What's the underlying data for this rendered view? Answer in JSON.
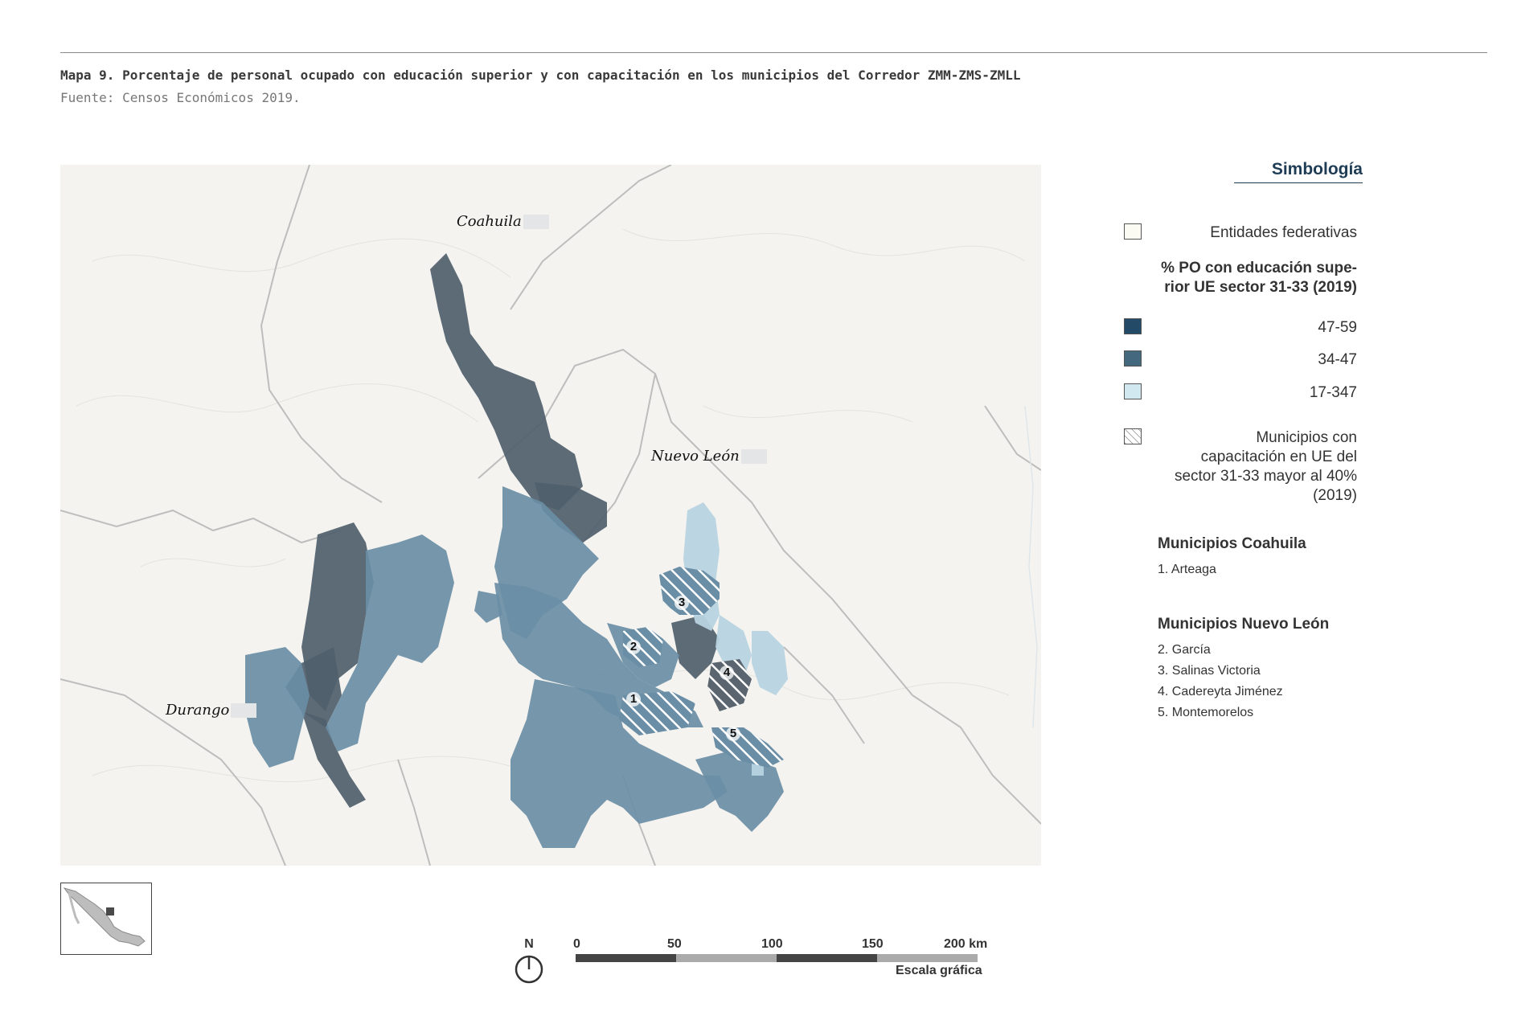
{
  "caption": {
    "title": "Mapa 9. Porcentaje de personal ocupado con educación superior y con capacitación en los municipios del Corredor ZMM-ZMS-ZMLL",
    "source": "Fuente: Censos Económicos 2019."
  },
  "map": {
    "state_labels": {
      "coahuila": "Coahuila",
      "nuevo_leon": "Nuevo León",
      "durango": "Durango"
    },
    "municipality_markers": [
      "1",
      "2",
      "3",
      "4",
      "5"
    ],
    "colors": {
      "background": "#f4f3ef",
      "class_47_59": "#4f5f6d",
      "class_34_47": "#6a8ea5",
      "class_17_347": "#b7d3e0",
      "hatch": "#ffffff",
      "state_border": "#bdbdbd"
    }
  },
  "legend": {
    "title": "Simbología",
    "entidades": "Entidades federativas",
    "class_heading": "% PO con educación supe-\nrior UE sector 31-33 (2019)",
    "classes": [
      {
        "label": "47-59",
        "color": "#234a66"
      },
      {
        "label": "34-47",
        "color": "#44697f"
      },
      {
        "label": "17-347",
        "color": "#d2e8f0"
      }
    ],
    "hatch_label": "Municipios con\ncapacitación en UE del\nsector 31-33 mayor al 40%\n(2019)",
    "coahuila_title": "Municipios Coahuila",
    "coahuila_items": [
      "1. Arteaga"
    ],
    "nuevo_leon_title": "Municipios Nuevo León",
    "nuevo_leon_items": [
      "2. García",
      "3. Salinas Victoria",
      "4. Cadereyta Jiménez",
      "5. Montemorelos"
    ]
  },
  "north_arrow": {
    "letter": "N"
  },
  "scale_bar": {
    "ticks": [
      "0",
      "50",
      "100",
      "150",
      "200 km"
    ],
    "caption": "Escala gráfica"
  }
}
